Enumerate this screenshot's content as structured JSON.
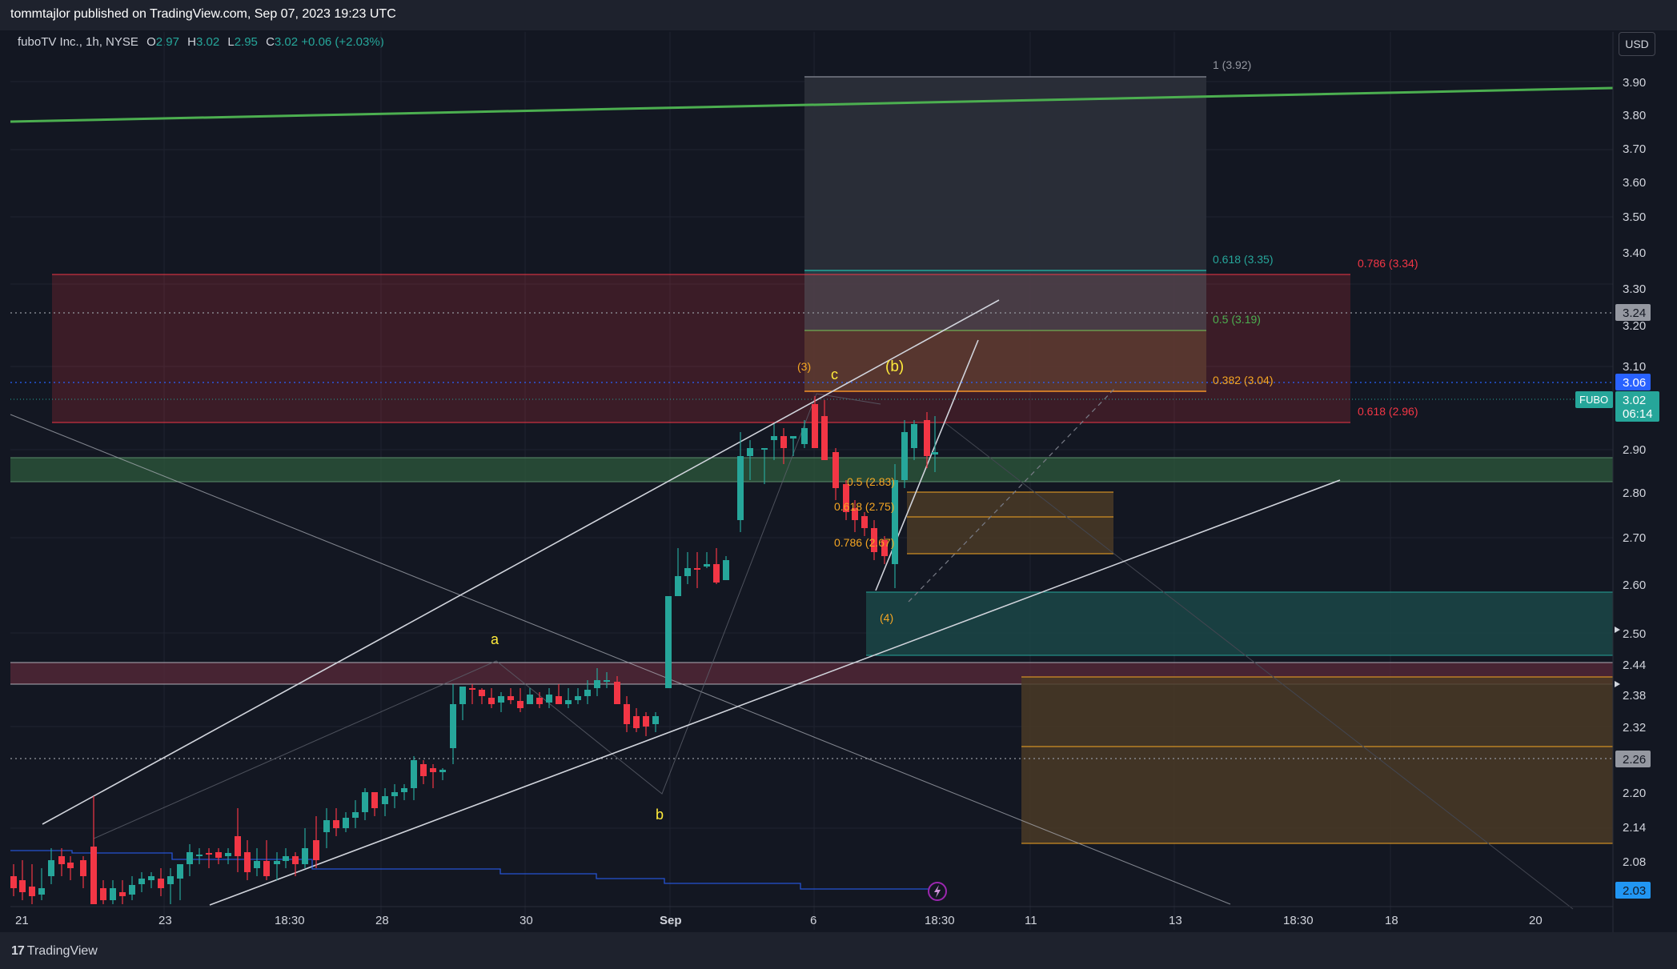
{
  "header": {
    "published": "tommtajlor published on TradingView.com, Sep 07, 2023 19:23 UTC"
  },
  "legend": {
    "symbol": "fuboTV Inc., 1h, NYSE",
    "open_label": "O",
    "open": "2.97",
    "high_label": "H",
    "high": "3.02",
    "low_label": "L",
    "low": "2.95",
    "close_label": "C",
    "close": "3.02",
    "change": "+0.06 (+2.03%)"
  },
  "currency_button": "USD",
  "footer": {
    "logo_mark": "17",
    "logo_text": "TradingView"
  },
  "colors": {
    "background": "#131722",
    "bar": "#1e222d",
    "up": "#26a69a",
    "down": "#f23645",
    "grid": "#1f2330",
    "accent_blue": "#2962ff",
    "fib_orange": "#f5a623",
    "trend_green": "#4caf50"
  },
  "price_axis": {
    "ticks": [
      "3.90",
      "3.80",
      "3.70",
      "3.60",
      "3.50",
      "3.40",
      "3.30",
      "3.20",
      "3.10",
      "2.90",
      "2.80",
      "2.70",
      "2.60",
      "2.50",
      "2.44",
      "2.38",
      "2.32",
      "2.20",
      "2.14",
      "2.08"
    ],
    "badges": [
      {
        "text": "3.24",
        "color": "#9598a1",
        "text_color": "#131722"
      },
      {
        "text": "3.06",
        "color": "#2962ff",
        "text_color": "#ffffff"
      },
      {
        "text": "2.26",
        "color": "#9598a1",
        "text_color": "#131722"
      },
      {
        "text": "2.03",
        "color": "#2196f3",
        "text_color": "#131722"
      }
    ],
    "current": {
      "symbol": "FUBO",
      "price": "3.02",
      "countdown": "06:14"
    }
  },
  "time_axis": {
    "ticks": [
      "21",
      "23",
      "18:30",
      "28",
      "30",
      "Sep",
      "6",
      "18:30",
      "11",
      "13",
      "18:30",
      "18",
      "20"
    ]
  },
  "annotations": {
    "fib_upper": [
      {
        "text": "1 (3.92)",
        "color": "#9598a1"
      },
      {
        "text": "0.618 (3.35)",
        "color": "#26a69a"
      },
      {
        "text": "0.5 (3.19)",
        "color": "#4caf50"
      },
      {
        "text": "0.382 (3.04)",
        "color": "#f5a623"
      }
    ],
    "fib_red": [
      {
        "text": "0.786 (3.34)",
        "color": "#f23645"
      },
      {
        "text": "0.618 (2.96)",
        "color": "#f23645"
      }
    ],
    "fib_retrace": [
      {
        "text": "0.5 (2.83)",
        "color": "#f5a623"
      },
      {
        "text": "0.618 (2.75)",
        "color": "#f5a623"
      },
      {
        "text": "0.786 (2.67)",
        "color": "#f5a623"
      }
    ],
    "waves": [
      {
        "text": "a",
        "color": "#ffeb3b"
      },
      {
        "text": "b",
        "color": "#ffeb3b"
      },
      {
        "text": "c",
        "color": "#ffeb3b"
      },
      {
        "text": "(3)",
        "color": "#f5a623"
      },
      {
        "text": "(b)",
        "color": "#ffeb3b"
      },
      {
        "text": "(4)",
        "color": "#f5a623"
      }
    ]
  }
}
